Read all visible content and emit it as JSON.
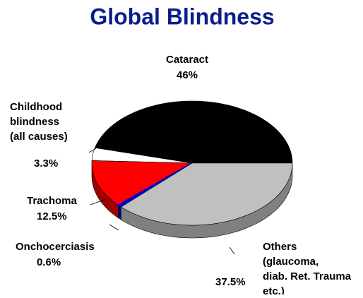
{
  "chart_data": {
    "type": "pie",
    "title": "Global Blindness",
    "categories": [
      [
        "Cataract"
      ],
      [
        "Childhood",
        "blindness",
        "(all causes)"
      ],
      [
        "Trachoma"
      ],
      [
        "Onchocerciasis"
      ],
      [
        "Others",
        "(glaucoma,",
        "diab. Ret. Trauma",
        "etc.)"
      ]
    ],
    "values": [
      46,
      3.3,
      12.5,
      0.6,
      37.5
    ],
    "value_labels": [
      "46%",
      "3.3%",
      "12.5%",
      "0.6%",
      "37.5%"
    ],
    "colors": [
      "#000000",
      "#ffffff",
      "#ff0000",
      "#0000cc",
      "#c0c0c0"
    ],
    "side_colors": [
      "#000000",
      "#d0d0d0",
      "#a00000",
      "#000080",
      "#808080"
    ],
    "three_d": true
  }
}
